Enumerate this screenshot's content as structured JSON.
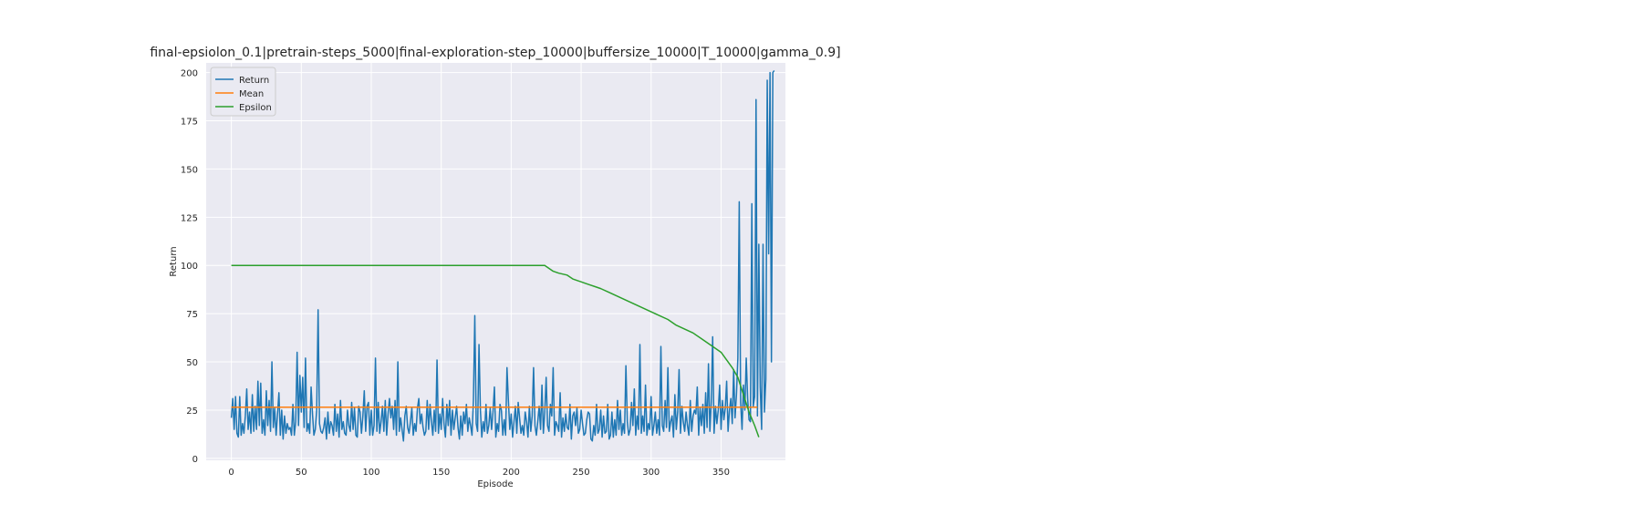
{
  "chart_data": {
    "type": "line",
    "title": "final-epsiolon_0.1|pretrain-steps_5000|final-exploration-step_10000|buffersize_10000|T_10000|gamma_0.9]",
    "xlabel": "Episode",
    "ylabel": "Return",
    "xlim": [
      -18,
      396
    ],
    "ylim": [
      -1,
      205
    ],
    "x_ticks": [
      0,
      50,
      100,
      150,
      200,
      250,
      300,
      350
    ],
    "y_ticks": [
      0,
      25,
      50,
      75,
      100,
      125,
      150,
      175,
      200
    ],
    "grid": true,
    "legend_position": "top-left",
    "series": [
      {
        "name": "Return",
        "color": "#1f77b4",
        "values": [
          21,
          31,
          15,
          32,
          13,
          11,
          32,
          12,
          18,
          13,
          22,
          36,
          15,
          24,
          13,
          33,
          14,
          27,
          15,
          40,
          17,
          39,
          13,
          20,
          12,
          35,
          17,
          30,
          14,
          50,
          16,
          26,
          12,
          23,
          34,
          12,
          25,
          10,
          22,
          13,
          18,
          15,
          16,
          12,
          28,
          12,
          19,
          55,
          17,
          43,
          24,
          42,
          16,
          52,
          14,
          18,
          13,
          37,
          23,
          12,
          15,
          25,
          77,
          18,
          14,
          13,
          16,
          21,
          10,
          24,
          13,
          19,
          17,
          12,
          28,
          14,
          23,
          11,
          30,
          15,
          19,
          13,
          12,
          25,
          17,
          14,
          29,
          15,
          26,
          12,
          11,
          27,
          24,
          13,
          22,
          35,
          14,
          27,
          29,
          12,
          25,
          12,
          17,
          52,
          14,
          29,
          13,
          19,
          27,
          14,
          30,
          12,
          23,
          31,
          21,
          27,
          15,
          30,
          12,
          50,
          14,
          21,
          15,
          9,
          22,
          27,
          16,
          13,
          19,
          26,
          12,
          18,
          14,
          26,
          31,
          18,
          23,
          16,
          12,
          14,
          30,
          15,
          28,
          19,
          12,
          25,
          14,
          51,
          13,
          23,
          15,
          31,
          18,
          11,
          28,
          17,
          30,
          12,
          25,
          15,
          21,
          27,
          16,
          10,
          22,
          12,
          24,
          18,
          28,
          14,
          21,
          17,
          12,
          30,
          74,
          18,
          14,
          59,
          25,
          11,
          19,
          14,
          28,
          13,
          17,
          26,
          15,
          24,
          37,
          11,
          18,
          14,
          28,
          25,
          12,
          20,
          12,
          47,
          30,
          15,
          23,
          11,
          19,
          27,
          13,
          29,
          21,
          13,
          17,
          12,
          24,
          19,
          11,
          27,
          14,
          22,
          47,
          17,
          12,
          19,
          27,
          15,
          38,
          13,
          24,
          42,
          17,
          14,
          28,
          22,
          47,
          12,
          19,
          17,
          14,
          34,
          11,
          21,
          14,
          23,
          16,
          15,
          28,
          10,
          22,
          24,
          17,
          26,
          13,
          15,
          25,
          18,
          12,
          13,
          20,
          24,
          23,
          10,
          9,
          17,
          12,
          28,
          13,
          15,
          25,
          11,
          22,
          13,
          14,
          28,
          10,
          12,
          24,
          11,
          20,
          12,
          30,
          15,
          25,
          12,
          18,
          13,
          48,
          19,
          12,
          15,
          29,
          17,
          36,
          12,
          22,
          15,
          59,
          13,
          22,
          14,
          38,
          12,
          18,
          15,
          32,
          12,
          17,
          24,
          13,
          20,
          12,
          58,
          17,
          14,
          30,
          16,
          47,
          14,
          19,
          22,
          11,
          33,
          15,
          24,
          46,
          13,
          27,
          19,
          14,
          24,
          17,
          12,
          30,
          14,
          22,
          25,
          23,
          37,
          12,
          26,
          17,
          28,
          13,
          34,
          16,
          49,
          14,
          29,
          63,
          13,
          27,
          18,
          25,
          38,
          15,
          30,
          20,
          26,
          40,
          14,
          25,
          31,
          18,
          46,
          21,
          33,
          52,
          133,
          29,
          15,
          38,
          25,
          52,
          31,
          20,
          19,
          132,
          27,
          32,
          186,
          22,
          111,
          37,
          15,
          111,
          24,
          41,
          196,
          106,
          200,
          50,
          200,
          201
        ]
      },
      {
        "name": "Mean",
        "color": "#ff7f0e",
        "constant": 26.5,
        "x_range": [
          0,
          376
        ]
      },
      {
        "name": "Epsilon",
        "color": "#2ca02c",
        "points": [
          [
            0,
            100
          ],
          [
            224,
            100
          ],
          [
            226,
            99
          ],
          [
            230,
            97
          ],
          [
            234,
            96
          ],
          [
            240,
            95
          ],
          [
            244,
            93
          ],
          [
            248,
            92
          ],
          [
            252,
            91
          ],
          [
            256,
            90
          ],
          [
            260,
            89
          ],
          [
            264,
            88
          ],
          [
            270,
            86
          ],
          [
            276,
            84
          ],
          [
            282,
            82
          ],
          [
            288,
            80
          ],
          [
            294,
            78
          ],
          [
            300,
            76
          ],
          [
            306,
            74
          ],
          [
            312,
            72
          ],
          [
            318,
            69
          ],
          [
            324,
            67
          ],
          [
            330,
            65
          ],
          [
            336,
            62
          ],
          [
            342,
            59
          ],
          [
            346,
            57
          ],
          [
            350,
            55
          ],
          [
            354,
            51
          ],
          [
            358,
            47
          ],
          [
            362,
            42
          ],
          [
            366,
            33
          ],
          [
            370,
            24
          ],
          [
            374,
            17
          ],
          [
            377,
            11
          ]
        ]
      }
    ]
  }
}
